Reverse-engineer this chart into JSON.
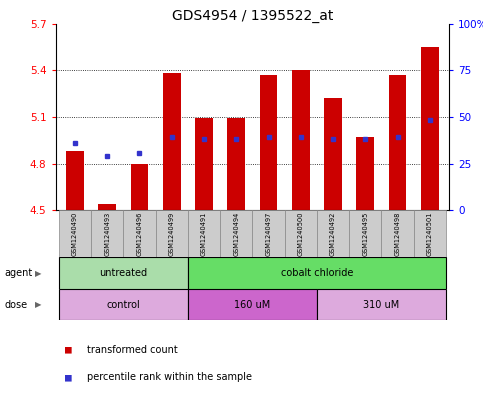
{
  "title": "GDS4954 / 1395522_at",
  "samples": [
    "GSM1240490",
    "GSM1240493",
    "GSM1240496",
    "GSM1240499",
    "GSM1240491",
    "GSM1240494",
    "GSM1240497",
    "GSM1240500",
    "GSM1240492",
    "GSM1240495",
    "GSM1240498",
    "GSM1240501"
  ],
  "bar_values": [
    4.88,
    4.54,
    4.8,
    5.38,
    5.09,
    5.09,
    5.37,
    5.4,
    5.22,
    4.97,
    5.37,
    5.55
  ],
  "blue_dot_values": [
    4.93,
    4.85,
    4.87,
    4.97,
    4.96,
    4.96,
    4.97,
    4.97,
    4.96,
    4.96,
    4.97,
    5.08
  ],
  "ymin": 4.5,
  "ymax": 5.7,
  "y2min": 0,
  "y2max": 100,
  "yticks": [
    4.5,
    4.8,
    5.1,
    5.4,
    5.7
  ],
  "ytick_labels": [
    "4.5",
    "4.8",
    "5.1",
    "5.4",
    "5.7"
  ],
  "y2ticks": [
    0,
    25,
    50,
    75,
    100
  ],
  "y2tick_labels": [
    "0",
    "25",
    "50",
    "75",
    "100%"
  ],
  "bar_color": "#cc0000",
  "blue_color": "#3333cc",
  "bar_baseline": 4.5,
  "agent_groups": [
    {
      "label": "untreated",
      "start": 0,
      "end": 4,
      "color": "#aaddaa"
    },
    {
      "label": "cobalt chloride",
      "start": 4,
      "end": 12,
      "color": "#66dd66"
    }
  ],
  "dose_groups": [
    {
      "label": "control",
      "start": 0,
      "end": 4,
      "color": "#ddaadd"
    },
    {
      "label": "160 uM",
      "start": 4,
      "end": 8,
      "color": "#cc66cc"
    },
    {
      "label": "310 uM",
      "start": 8,
      "end": 12,
      "color": "#ddaadd"
    }
  ],
  "legend_items": [
    {
      "label": "transformed count",
      "color": "#cc0000"
    },
    {
      "label": "percentile rank within the sample",
      "color": "#3333cc"
    }
  ],
  "title_fontsize": 10,
  "tick_fontsize": 7.5,
  "sample_fontsize": 4.8
}
